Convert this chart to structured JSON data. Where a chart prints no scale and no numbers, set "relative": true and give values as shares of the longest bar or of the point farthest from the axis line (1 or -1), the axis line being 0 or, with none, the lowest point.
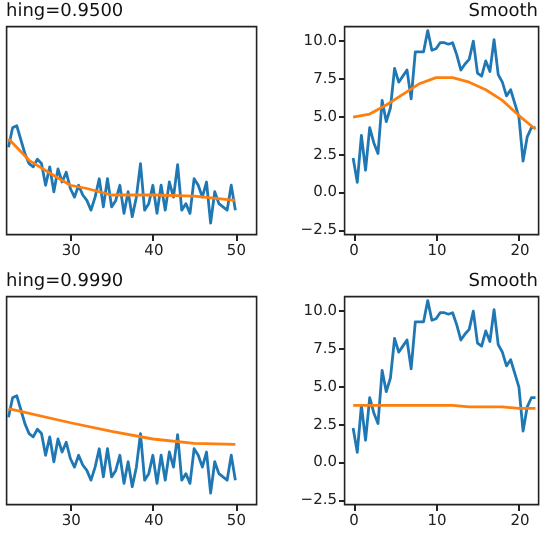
{
  "chart_data": [
    {
      "type": "line",
      "title": "hing=0.9500",
      "relative": true,
      "xlim": [
        22.2,
        52.5
      ],
      "xticks": [
        30,
        40,
        50
      ],
      "grid": false,
      "series": [
        {
          "color": "#1f77b4",
          "x": [
            22.5,
            23,
            23.5,
            24,
            24.5,
            25,
            25.5,
            26,
            26.5,
            27,
            27.5,
            28,
            28.5,
            29,
            29.5,
            30,
            30.5,
            31,
            31.5,
            32,
            32.5,
            33,
            33.5,
            34,
            34.5,
            35,
            35.5,
            36,
            36.5,
            37,
            37.5,
            38,
            38.5,
            39,
            39.5,
            40,
            40.5,
            41,
            41.5,
            42,
            42.5,
            43,
            43.5,
            44,
            44.5,
            45,
            45.5,
            46,
            46.5,
            47,
            47.5,
            48,
            48.5,
            49,
            49.5,
            50
          ],
          "values": [
            0.8,
            0.98,
            1.0,
            0.87,
            0.74,
            0.65,
            0.62,
            0.69,
            0.65,
            0.45,
            0.62,
            0.39,
            0.6,
            0.48,
            0.57,
            0.42,
            0.34,
            0.45,
            0.36,
            0.31,
            0.22,
            0.34,
            0.51,
            0.25,
            0.51,
            0.25,
            0.31,
            0.45,
            0.19,
            0.39,
            0.16,
            0.34,
            0.65,
            0.22,
            0.28,
            0.45,
            0.19,
            0.45,
            0.22,
            0.48,
            0.34,
            0.64,
            0.22,
            0.28,
            0.19,
            0.51,
            0.45,
            0.34,
            0.48,
            0.1,
            0.39,
            0.28,
            0.25,
            0.22,
            0.45,
            0.22
          ]
        },
        {
          "color": "#ff7f0e",
          "x": [
            22.5,
            25,
            28,
            30,
            32,
            35,
            40,
            45,
            50
          ],
          "values": [
            0.88,
            0.68,
            0.54,
            0.45,
            0.42,
            0.36,
            0.36,
            0.35,
            0.31
          ]
        }
      ]
    },
    {
      "type": "line",
      "title": "Smooth",
      "xlim": [
        -1.1,
        22.3
      ],
      "xticks": [
        0,
        10,
        20
      ],
      "ylim": [
        -2.8,
        10.9
      ],
      "yticks": [
        {
          "value": -2.5,
          "label": "−2.5"
        },
        {
          "value": 0,
          "label": "0.0"
        },
        {
          "value": 2.5,
          "label": "2.5"
        },
        {
          "value": 5,
          "label": "5.0"
        },
        {
          "value": 7.5,
          "label": "7.5"
        },
        {
          "value": 10,
          "label": "10.0"
        }
      ],
      "grid": false,
      "series": [
        {
          "color": "#1f77b4",
          "x": [
            0,
            0.5,
            1,
            1.5,
            2,
            2.5,
            3,
            3.5,
            4,
            4.5,
            5,
            5.5,
            6,
            6.5,
            7,
            7.5,
            8,
            8.5,
            9,
            9.5,
            10,
            10.5,
            11,
            11.5,
            12,
            12.5,
            13,
            13.5,
            14,
            14.5,
            15,
            15.5,
            16,
            16.5,
            17,
            17.5,
            18,
            18.5,
            19,
            19.5,
            20,
            20.5,
            21,
            21.5,
            22
          ],
          "values": [
            2.2,
            0.6,
            3.7,
            1.4,
            4.2,
            3.2,
            2.5,
            6.0,
            4.6,
            5.5,
            8.1,
            7.2,
            7.6,
            8.0,
            6.1,
            9.2,
            9.2,
            9.2,
            10.6,
            9.3,
            9.4,
            9.8,
            9.8,
            9.7,
            9.8,
            9.0,
            8.0,
            8.4,
            8.7,
            9.9,
            7.8,
            7.6,
            8.6,
            7.9,
            10.0,
            7.7,
            7.2,
            6.3,
            6.7,
            5.8,
            4.9,
            2.0,
            3.6,
            4.2,
            4.2
          ]
        },
        {
          "color": "#ff7f0e",
          "x": [
            0,
            2,
            4,
            6,
            8,
            10,
            12,
            14,
            16,
            18,
            20,
            22
          ],
          "values": [
            4.9,
            5.1,
            5.7,
            6.4,
            7.1,
            7.5,
            7.5,
            7.2,
            6.7,
            6.0,
            5.0,
            4.1
          ]
        }
      ]
    },
    {
      "type": "line",
      "title": "hing=0.9990",
      "relative": true,
      "xlim": [
        22.2,
        52.5
      ],
      "xticks": [
        30,
        40,
        50
      ],
      "grid": false,
      "series": [
        {
          "color": "#1f77b4",
          "x": [
            22.5,
            23,
            23.5,
            24,
            24.5,
            25,
            25.5,
            26,
            26.5,
            27,
            27.5,
            28,
            28.5,
            29,
            29.5,
            30,
            30.5,
            31,
            31.5,
            32,
            32.5,
            33,
            33.5,
            34,
            34.5,
            35,
            35.5,
            36,
            36.5,
            37,
            37.5,
            38,
            38.5,
            39,
            39.5,
            40,
            40.5,
            41,
            41.5,
            42,
            42.5,
            43,
            43.5,
            44,
            44.5,
            45,
            45.5,
            46,
            46.5,
            47,
            47.5,
            48,
            48.5,
            49,
            49.5,
            50
          ],
          "values": [
            0.8,
            0.98,
            1.0,
            0.87,
            0.74,
            0.65,
            0.62,
            0.69,
            0.65,
            0.45,
            0.62,
            0.39,
            0.6,
            0.48,
            0.57,
            0.42,
            0.34,
            0.45,
            0.36,
            0.31,
            0.22,
            0.34,
            0.51,
            0.25,
            0.51,
            0.25,
            0.31,
            0.45,
            0.19,
            0.39,
            0.16,
            0.34,
            0.65,
            0.22,
            0.28,
            0.45,
            0.19,
            0.45,
            0.22,
            0.48,
            0.34,
            0.64,
            0.22,
            0.28,
            0.19,
            0.51,
            0.45,
            0.34,
            0.48,
            0.1,
            0.39,
            0.28,
            0.25,
            0.22,
            0.45,
            0.22
          ]
        },
        {
          "color": "#ff7f0e",
          "x": [
            22.5,
            30,
            35,
            40,
            45,
            50
          ],
          "values": [
            0.88,
            0.75,
            0.67,
            0.6,
            0.56,
            0.55
          ]
        }
      ]
    },
    {
      "type": "line",
      "title": "Smooth",
      "xlim": [
        -1.1,
        22.3
      ],
      "xticks": [
        0,
        10,
        20
      ],
      "ylim": [
        -2.8,
        10.9
      ],
      "yticks": [
        {
          "value": -2.5,
          "label": "−2.5"
        },
        {
          "value": 0,
          "label": "0.0"
        },
        {
          "value": 2.5,
          "label": "2.5"
        },
        {
          "value": 5,
          "label": "5.0"
        },
        {
          "value": 7.5,
          "label": "7.5"
        },
        {
          "value": 10,
          "label": "10.0"
        }
      ],
      "grid": false,
      "series": [
        {
          "color": "#1f77b4",
          "x": [
            0,
            0.5,
            1,
            1.5,
            2,
            2.5,
            3,
            3.5,
            4,
            4.5,
            5,
            5.5,
            6,
            6.5,
            7,
            7.5,
            8,
            8.5,
            9,
            9.5,
            10,
            10.5,
            11,
            11.5,
            12,
            12.5,
            13,
            13.5,
            14,
            14.5,
            15,
            15.5,
            16,
            16.5,
            17,
            17.5,
            18,
            18.5,
            19,
            19.5,
            20,
            20.5,
            21,
            21.5,
            22
          ],
          "values": [
            2.2,
            0.6,
            3.7,
            1.4,
            4.2,
            3.2,
            2.5,
            6.0,
            4.6,
            5.5,
            8.1,
            7.2,
            7.6,
            8.0,
            6.1,
            9.2,
            9.2,
            9.2,
            10.6,
            9.3,
            9.4,
            9.8,
            9.8,
            9.7,
            9.8,
            9.0,
            8.0,
            8.4,
            8.7,
            9.9,
            7.8,
            7.6,
            8.6,
            7.9,
            10.0,
            7.7,
            7.2,
            6.3,
            6.7,
            5.8,
            4.9,
            2.0,
            3.6,
            4.2,
            4.2
          ]
        },
        {
          "color": "#ff7f0e",
          "x": [
            0,
            2,
            4,
            6,
            8,
            10,
            12,
            14,
            16,
            18,
            20,
            22
          ],
          "values": [
            3.7,
            3.7,
            3.7,
            3.7,
            3.7,
            3.7,
            3.7,
            3.6,
            3.6,
            3.6,
            3.5,
            3.5
          ]
        }
      ]
    }
  ]
}
